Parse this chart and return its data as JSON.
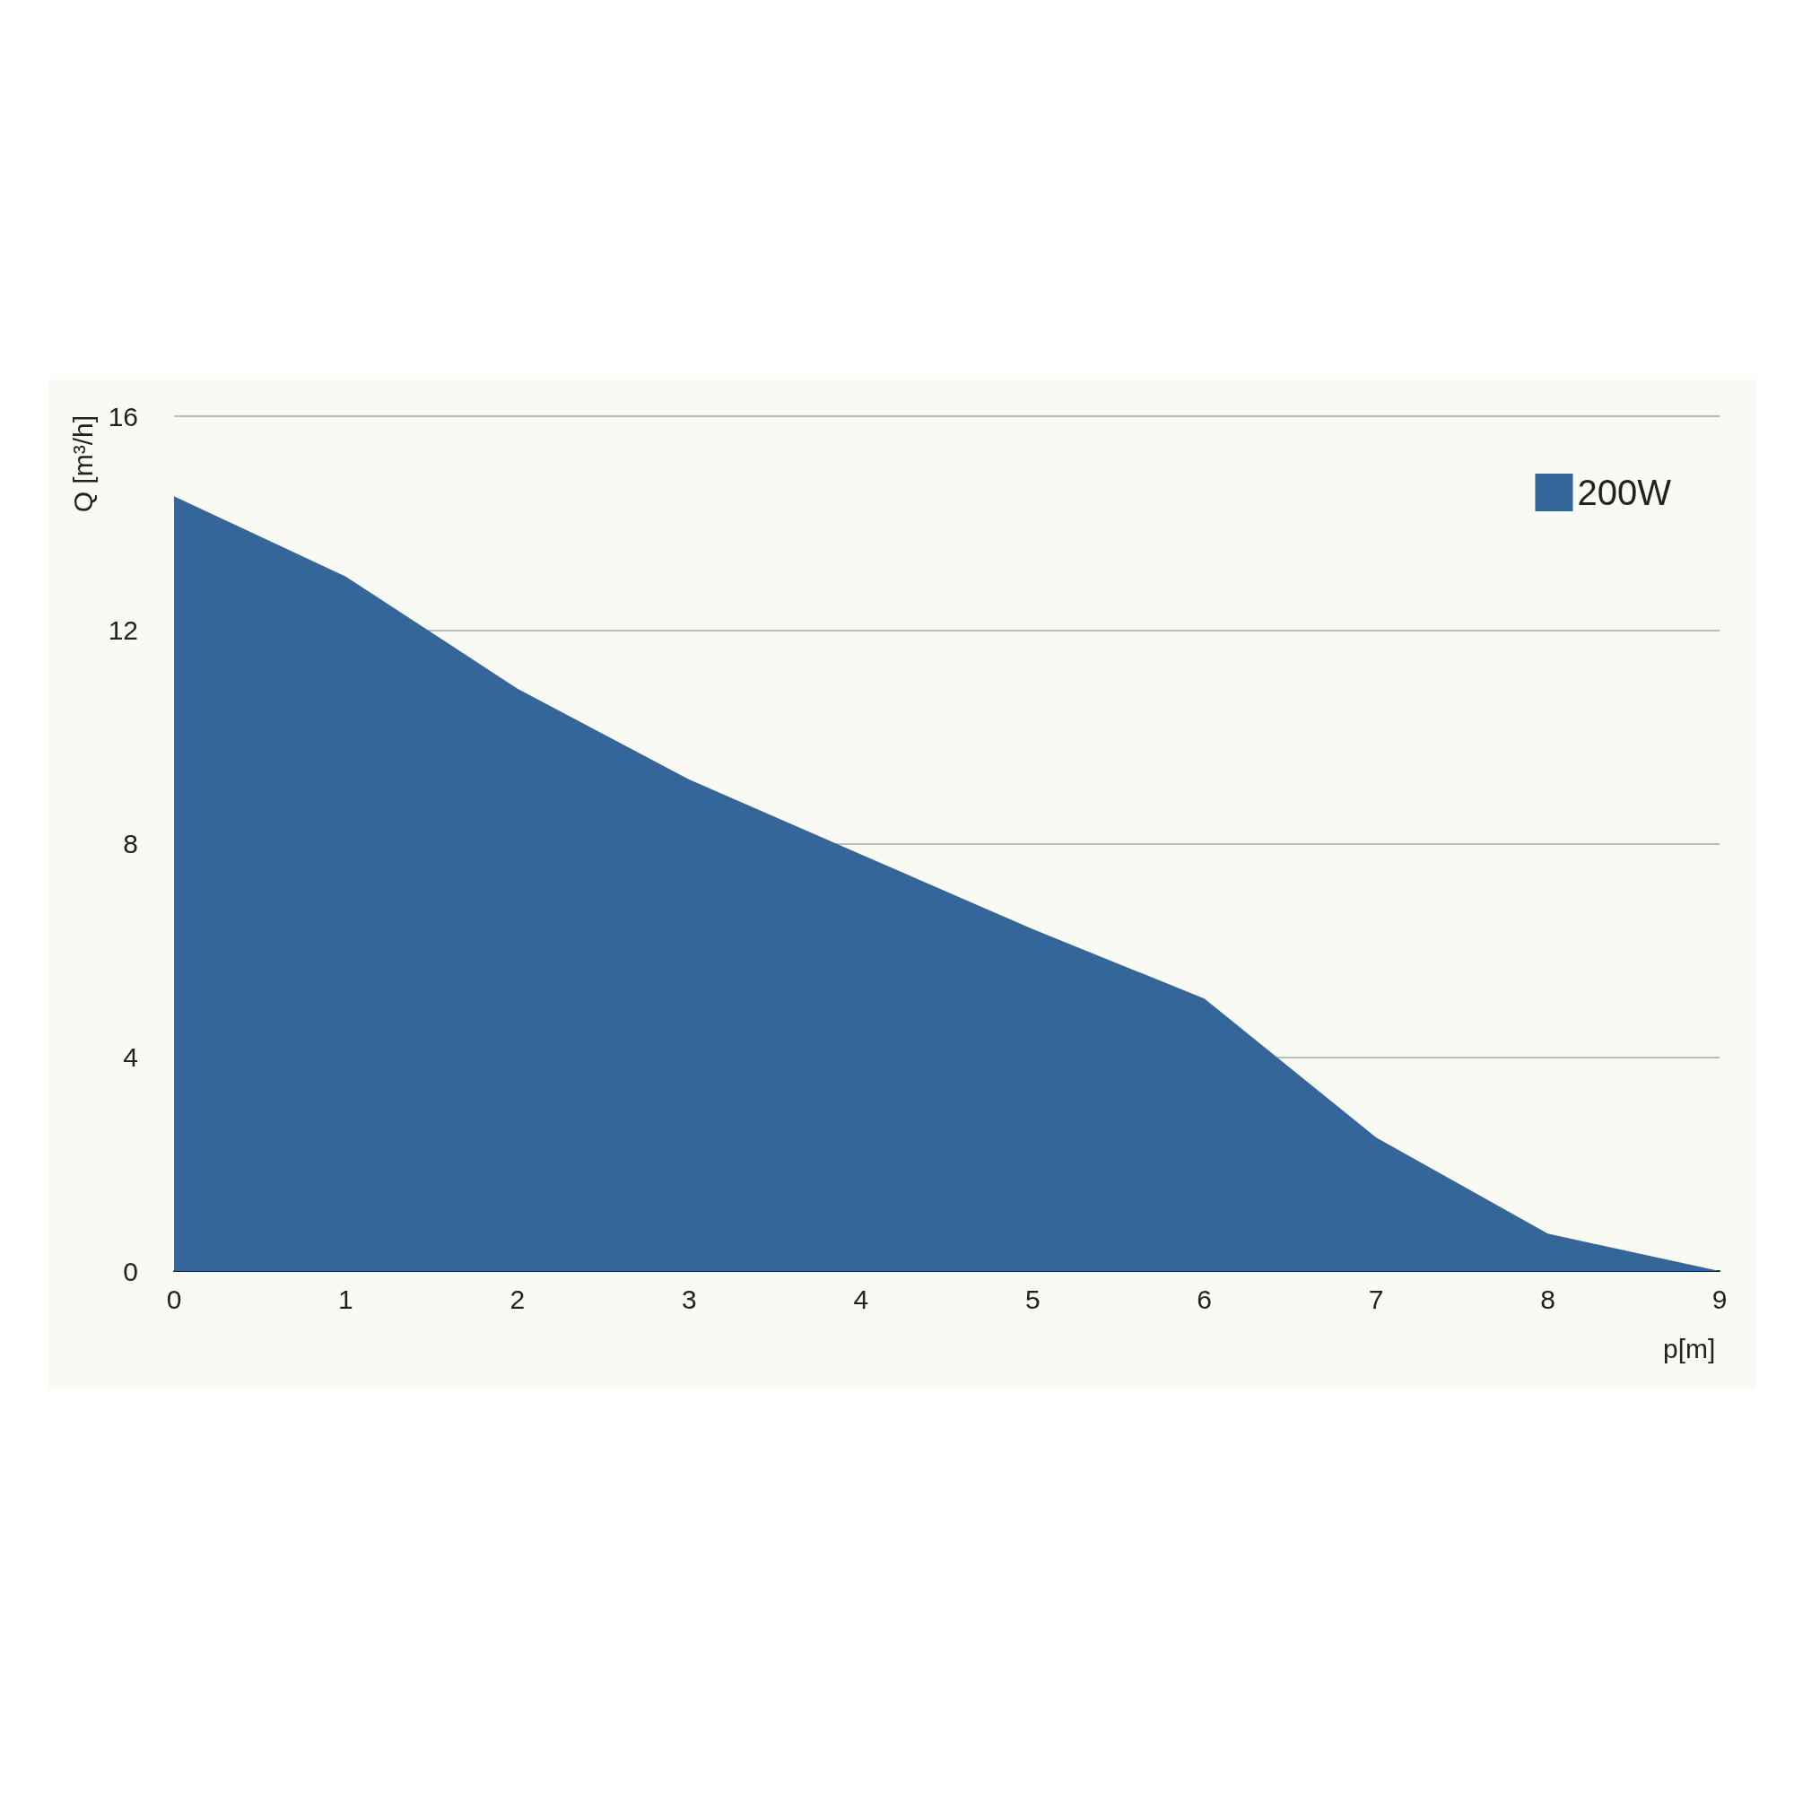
{
  "chart_data": {
    "type": "area",
    "xlabel": "p[m]",
    "ylabel": "Q [m³/h]",
    "x": [
      0,
      1,
      2,
      3,
      4,
      5,
      6,
      7,
      8,
      9
    ],
    "series": [
      {
        "name": "200W",
        "color": "#34669a",
        "values": [
          14.5,
          13,
          10.9,
          9.2,
          7.8,
          6.4,
          5.1,
          2.5,
          0.7,
          0
        ]
      }
    ],
    "xlim": [
      0,
      9
    ],
    "xticks": [
      0,
      1,
      2,
      3,
      4,
      5,
      6,
      7,
      8,
      9
    ],
    "ylim": [
      0,
      16
    ],
    "yticks": [
      0,
      4,
      8,
      12,
      16
    ],
    "grid": "y",
    "legend": "top right",
    "marker": "none"
  }
}
